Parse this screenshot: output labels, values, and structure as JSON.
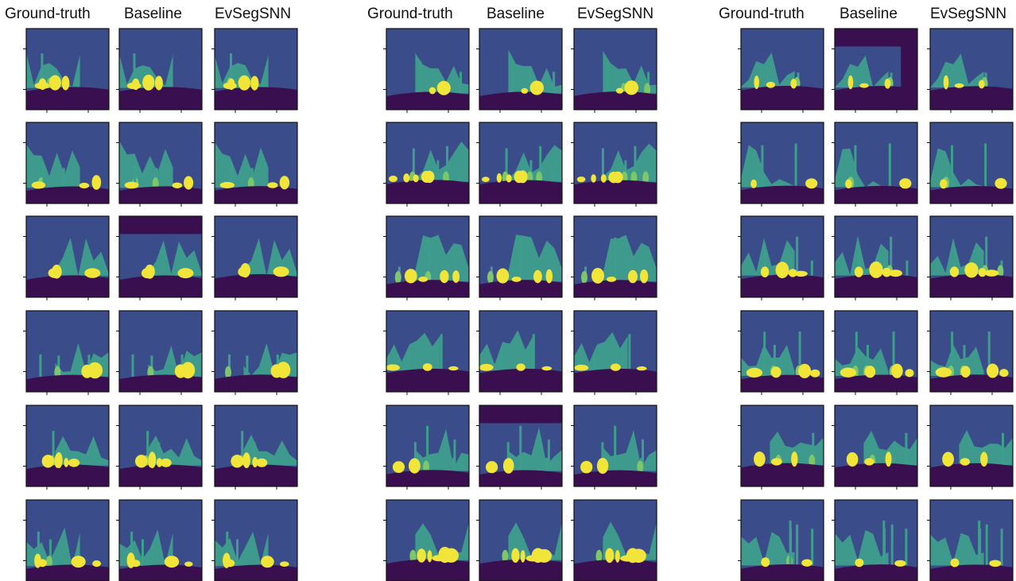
{
  "figure": {
    "columns": [
      "Ground-truth",
      "Baseline",
      "EvSegSNN"
    ],
    "groups": 3,
    "rows_per_group": 6,
    "class_colors": {
      "background": "#3b4c8a",
      "vegetation": "#3e9e8c",
      "light_vegetation": "#7ec66a",
      "vehicle": "#f2e53a",
      "ground": "#3a0f4f"
    }
  }
}
